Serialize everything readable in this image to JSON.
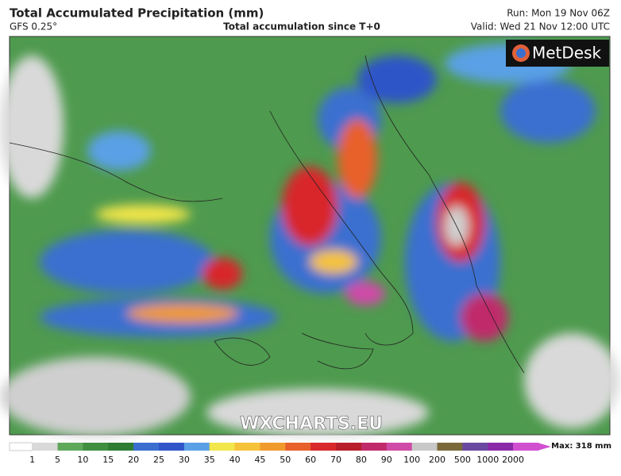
{
  "header": {
    "title": "Total Accumulated Precipitation (mm)",
    "model": "GFS 0.25°",
    "subtitle": "Total accumulation since T+0",
    "run": "Run: Mon 19 Nov 06Z",
    "valid": "Valid: Wed 21 Nov 12:00 UTC"
  },
  "logo": "MetDesk",
  "watermark": "WXCHARTS.EU",
  "legend": {
    "max": "Max: 318 mm",
    "levels": [
      {
        "value": 1,
        "color": "#d9d9d9"
      },
      {
        "value": 5,
        "color": "#5fa85a"
      },
      {
        "value": 10,
        "color": "#3f8f3f"
      },
      {
        "value": 15,
        "color": "#2e7d32"
      },
      {
        "value": 20,
        "color": "#3a6fd0"
      },
      {
        "value": 25,
        "color": "#2f55c8"
      },
      {
        "value": 30,
        "color": "#5aa0e6"
      },
      {
        "value": 35,
        "color": "#f2e64a"
      },
      {
        "value": 40,
        "color": "#f5c23a"
      },
      {
        "value": 45,
        "color": "#f09a2e"
      },
      {
        "value": 50,
        "color": "#e8602a"
      },
      {
        "value": 60,
        "color": "#d8282a"
      },
      {
        "value": 70,
        "color": "#b81e2a"
      },
      {
        "value": 80,
        "color": "#c02a6a"
      },
      {
        "value": 90,
        "color": "#d04aa8"
      },
      {
        "value": 100,
        "color": "#c8c8c8"
      },
      {
        "value": 200,
        "color": "#7a6a3a"
      },
      {
        "value": 500,
        "color": "#6a4aa0"
      },
      {
        "value": 1000,
        "color": "#8a2aa8"
      },
      {
        "value": 2000,
        "color": "#d050d0"
      }
    ]
  }
}
